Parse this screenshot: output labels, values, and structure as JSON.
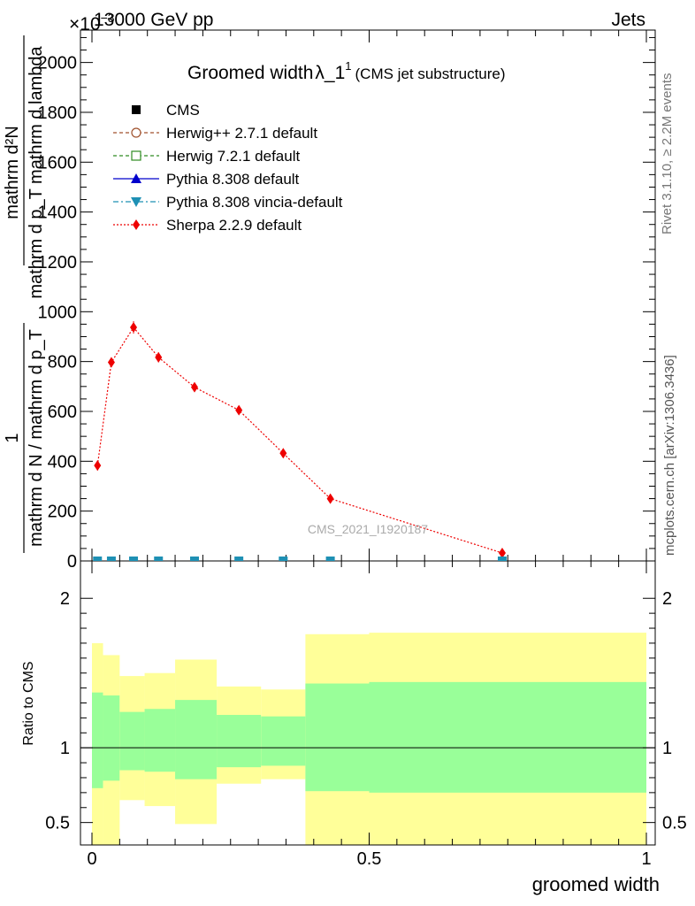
{
  "header": {
    "left": "13000 GeV pp",
    "right": "Jets",
    "exponent": "×10",
    "exponent_power": "−3"
  },
  "side": {
    "rivet": "Rivet 3.1.10, ≥ 2.2M events",
    "mcplots": "mcplots.cern.ch [arXiv:1306.3436]"
  },
  "title": {
    "main": "Groomed width",
    "lambda": "λ_1",
    "sup": "1",
    "sub": "(CMS jet substructure)"
  },
  "watermark": "CMS_2021_I1920187",
  "ylabel_main": {
    "num": "mathrm d²N",
    "den": "mathrm d p_T mathrm d lambda",
    "prefix_num": "1",
    "prefix_den": "mathrm d N / mathrm d p_T"
  },
  "ylabel_ratio": "Ratio to CMS",
  "xlabel": "groomed width",
  "legend": [
    {
      "name": "CMS",
      "color": "#000000",
      "marker": "square",
      "line": "none"
    },
    {
      "name": "Herwig++ 2.7.1 default",
      "color": "#a0522d",
      "marker": "circle-open",
      "line": "dashed"
    },
    {
      "name": "Herwig 7.2.1 default",
      "color": "#2e8b22",
      "marker": "square-open",
      "line": "dashed"
    },
    {
      "name": "Pythia 8.308 default",
      "color": "#0000cc",
      "marker": "triangle-up",
      "line": "solid"
    },
    {
      "name": "Pythia 8.308 vincia-default",
      "color": "#1e90b4",
      "marker": "triangle-down",
      "line": "dashdot"
    },
    {
      "name": "Sherpa 2.2.9 default",
      "color": "#ee0000",
      "marker": "diamond",
      "line": "dotted"
    }
  ],
  "chart_data": {
    "type": "line",
    "title": "Groomed width λ_1^1 (CMS jet substructure)",
    "xlabel": "groomed width",
    "ylabel": "1/(mathrm d N / mathrm d p_T) · mathrm d²N/(mathrm d p_T mathrm d lambda)",
    "xlim": [
      0,
      1
    ],
    "ylim": [
      0,
      2.13
    ],
    "y_exponent": -3,
    "y_ticks": [
      0,
      200,
      400,
      600,
      800,
      1000,
      1200,
      1400,
      1600,
      1800,
      2000
    ],
    "x_ticks": [
      0,
      0.5,
      1
    ],
    "x_tick_labels": [
      "0",
      "0.5",
      "1"
    ],
    "series": [
      {
        "name": "Sherpa 2.2.9 default",
        "x": [
          0.01,
          0.035,
          0.075,
          0.12,
          0.185,
          0.265,
          0.345,
          0.43,
          0.74
        ],
        "y": [
          0.383,
          0.797,
          0.937,
          0.817,
          0.697,
          0.605,
          0.432,
          0.25,
          0.032
        ],
        "err": [
          0.02,
          0.02,
          0.025,
          0.02,
          0.015,
          0.012,
          0.01,
          0.008,
          0.004
        ]
      },
      {
        "name": "Pythia 8.308 vincia-default",
        "x": [
          0.01,
          0.035,
          0.075,
          0.12,
          0.185,
          0.265,
          0.345,
          0.43,
          0.74
        ],
        "y": [
          0.002,
          0.002,
          0.002,
          0.002,
          0.002,
          0.002,
          0.002,
          0.002,
          0.002
        ]
      }
    ],
    "ratio_panel": {
      "ylabel": "Ratio to CMS",
      "ylim": [
        0.35,
        2.25
      ],
      "y_ticks": [
        0.5,
        1,
        2
      ],
      "y_tick_labels": [
        "0.5",
        "1",
        "2"
      ],
      "bins": [
        {
          "x0": 0.0,
          "x1": 0.02,
          "green": [
            0.73,
            1.37
          ],
          "yellow": [
            0.3,
            1.7
          ]
        },
        {
          "x0": 0.02,
          "x1": 0.05,
          "green": [
            0.78,
            1.35
          ],
          "yellow": [
            0.3,
            1.62
          ]
        },
        {
          "x0": 0.05,
          "x1": 0.095,
          "green": [
            0.85,
            1.24
          ],
          "yellow": [
            0.65,
            1.48
          ]
        },
        {
          "x0": 0.095,
          "x1": 0.15,
          "green": [
            0.84,
            1.26
          ],
          "yellow": [
            0.61,
            1.5
          ]
        },
        {
          "x0": 0.15,
          "x1": 0.225,
          "green": [
            0.79,
            1.32
          ],
          "yellow": [
            0.49,
            1.59
          ]
        },
        {
          "x0": 0.225,
          "x1": 0.305,
          "green": [
            0.87,
            1.22
          ],
          "yellow": [
            0.76,
            1.41
          ]
        },
        {
          "x0": 0.305,
          "x1": 0.385,
          "green": [
            0.88,
            1.21
          ],
          "yellow": [
            0.79,
            1.39
          ]
        },
        {
          "x0": 0.385,
          "x1": 0.5,
          "green": [
            0.71,
            1.43
          ],
          "yellow": [
            0.35,
            1.76
          ]
        },
        {
          "x0": 0.5,
          "x1": 1.0,
          "green": [
            0.7,
            1.44
          ],
          "yellow": [
            0.35,
            1.77
          ]
        }
      ]
    }
  }
}
